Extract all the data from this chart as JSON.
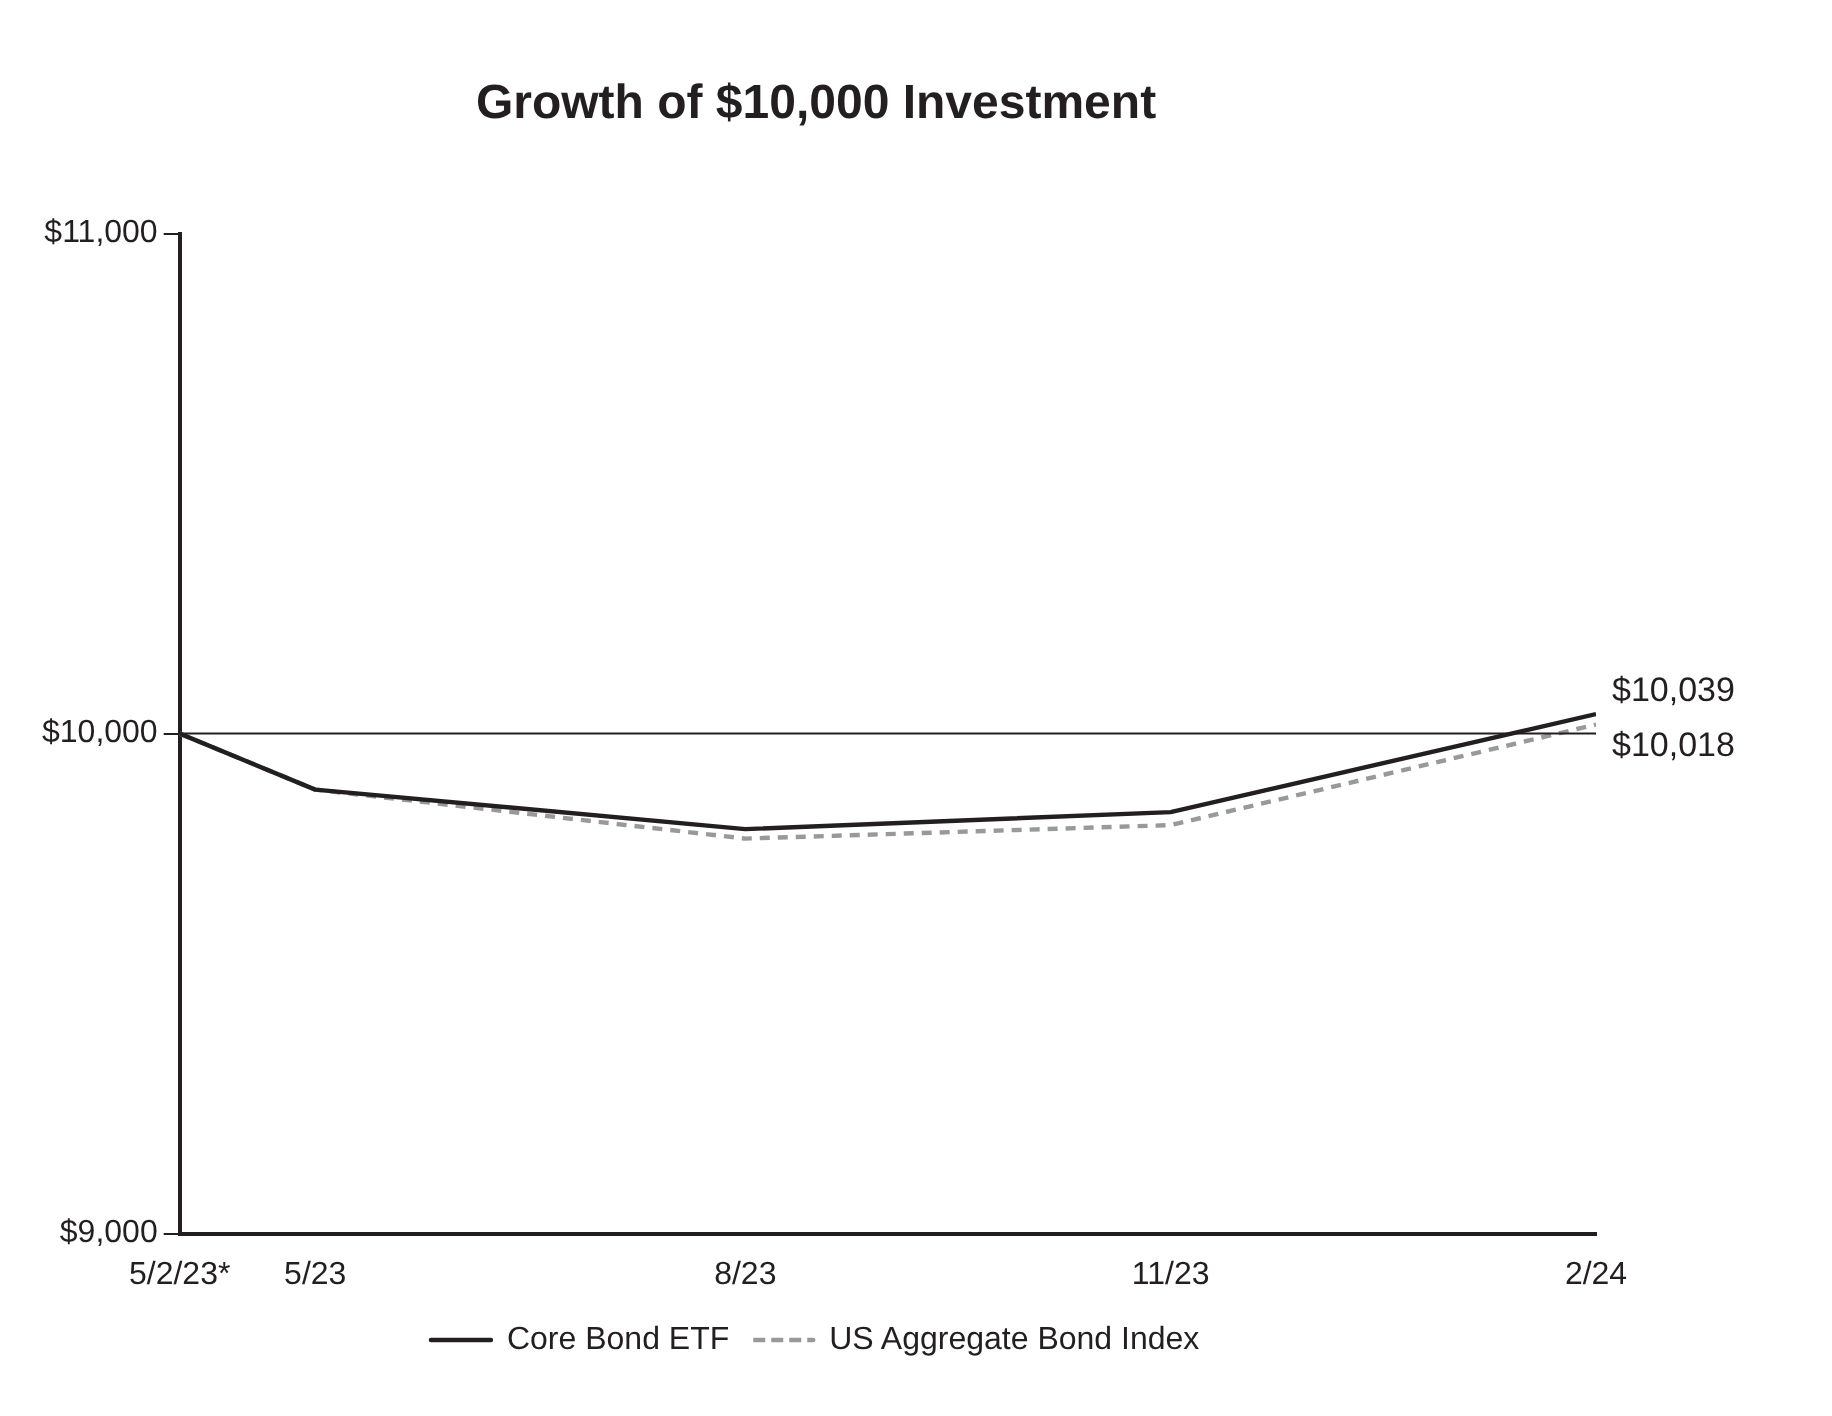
{
  "chart_data": {
    "type": "line",
    "title": "Growth of $10,000 Investment",
    "x": [
      "2023-05-02",
      "2023-05-31",
      "2023-08-31",
      "2023-11-30",
      "2024-02-29"
    ],
    "series": [
      {
        "name": "Core Bond ETF",
        "color": "#231f20",
        "line_style": "solid",
        "values": [
          10000,
          9888,
          9809,
          9843,
          10039
        ],
        "value_labels": [
          null,
          null,
          null,
          null,
          "$10,039"
        ]
      },
      {
        "name": "US Aggregate Bond Index",
        "color": "#999999",
        "line_style": "dashed",
        "values": [
          10000,
          9888,
          9790,
          9817,
          10018
        ],
        "value_labels": [
          null,
          null,
          null,
          null,
          "$10,018"
        ]
      }
    ],
    "xlim": [
      "2023-05-02",
      "2024-02-29"
    ],
    "xticks": [
      {
        "value": "2023-05-02",
        "label": "5/2/23*"
      },
      {
        "value": "2023-05-31",
        "label": "5/23"
      },
      {
        "value": "2023-08-31",
        "label": "8/23"
      },
      {
        "value": "2023-11-30",
        "label": "11/23"
      },
      {
        "value": "2024-02-29",
        "label": "2/24"
      }
    ],
    "ylim": [
      9000,
      11000
    ],
    "yticks": [
      {
        "value": 9000,
        "label": "$9,000"
      },
      {
        "value": 10000,
        "label": "$10,000"
      },
      {
        "value": 11000,
        "label": "$11,000"
      }
    ],
    "ref_lines": [
      {
        "axis": "y",
        "value": 10000,
        "color": "#231f20"
      }
    ],
    "grid": false,
    "legend": "bottom",
    "marker": "none"
  }
}
